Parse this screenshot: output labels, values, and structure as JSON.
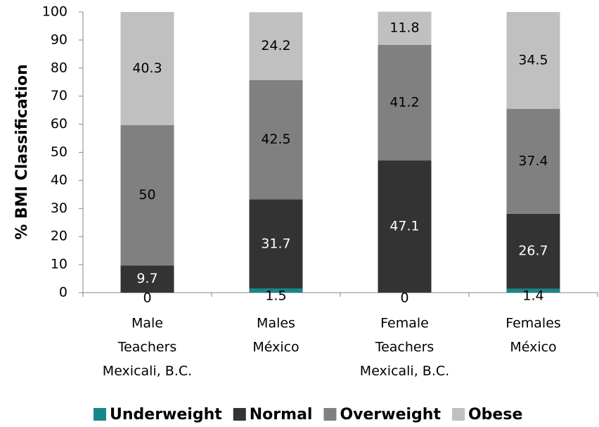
{
  "chart_data": {
    "type": "stacked_bar",
    "y_label": "% BMI Classification",
    "categories": [
      [
        "Male",
        "Teachers",
        "Mexicali, B.C."
      ],
      [
        "Males",
        "México"
      ],
      [
        "Female",
        "Teachers",
        "Mexicali, B.C."
      ],
      [
        "Females",
        "México"
      ]
    ],
    "series": [
      {
        "name": "Underweight",
        "color": "#17878a",
        "values": [
          0,
          1.5,
          0,
          1.4
        ]
      },
      {
        "name": "Normal",
        "color": "#333333",
        "values": [
          9.7,
          31.7,
          47.1,
          26.7
        ]
      },
      {
        "name": "Overweight",
        "color": "#808080",
        "values": [
          50,
          42.5,
          41.2,
          37.4
        ]
      },
      {
        "name": "Obese",
        "color": "#c0c0c0",
        "values": [
          40.3,
          24.2,
          11.8,
          34.5
        ]
      }
    ],
    "ylim": [
      0,
      100
    ],
    "yticks": [
      0,
      10,
      20,
      30,
      40,
      50,
      60,
      70,
      80,
      90,
      100
    ],
    "grid": false,
    "legend": "bottom"
  }
}
